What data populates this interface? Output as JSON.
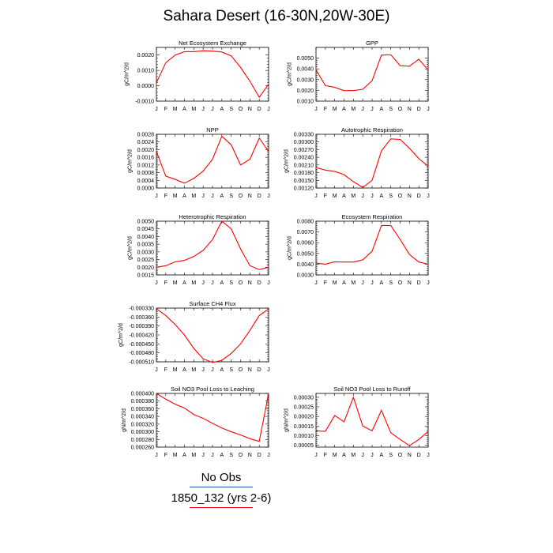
{
  "title": "Sahara Desert (16-30N,20W-30E)",
  "colors": {
    "model": "#ff0000",
    "obs": "#1f4fb4",
    "axis": "#000000"
  },
  "legend": {
    "obs_label": "No Obs",
    "model_label": "1850_132 (yrs 2-6)"
  },
  "chart_data": [
    {
      "type": "line",
      "title": "Net Ecosystem Exchange",
      "ylabel": "gC/m^2/d",
      "categories": [
        "J",
        "F",
        "M",
        "A",
        "M",
        "J",
        "J",
        "A",
        "S",
        "O",
        "N",
        "D",
        "J"
      ],
      "ylim": [
        -0.001,
        0.0025
      ],
      "yticks": [
        -0.001,
        0.0,
        0.001,
        0.002
      ],
      "ytick_labels": [
        "-0.0010",
        "0.0000",
        "0.0010",
        "0.0020"
      ],
      "series": [
        {
          "values": [
            0.0002,
            0.0015,
            0.002,
            0.00222,
            0.00222,
            0.00228,
            0.00226,
            0.0022,
            0.00195,
            0.0012,
            0.0003,
            -0.00075,
            0.0001
          ]
        }
      ]
    },
    {
      "type": "line",
      "title": "GPP",
      "ylabel": "gC/m^2/d",
      "categories": [
        "J",
        "F",
        "M",
        "A",
        "M",
        "J",
        "J",
        "A",
        "S",
        "O",
        "N",
        "D",
        "J"
      ],
      "ylim": [
        0.001,
        0.006
      ],
      "yticks": [
        0.001,
        0.002,
        0.003,
        0.004,
        0.005
      ],
      "ytick_labels": [
        "0.0010",
        "0.0020",
        "0.0030",
        "0.0040",
        "0.0050"
      ],
      "series": [
        {
          "values": [
            0.0039,
            0.00245,
            0.00228,
            0.00198,
            0.00198,
            0.0021,
            0.0029,
            0.00528,
            0.00532,
            0.0043,
            0.00425,
            0.0049,
            0.0039
          ]
        }
      ]
    },
    {
      "type": "line",
      "title": "NPP",
      "ylabel": "gC/m^2/d",
      "categories": [
        "J",
        "F",
        "M",
        "A",
        "M",
        "J",
        "J",
        "A",
        "S",
        "O",
        "N",
        "D",
        "J"
      ],
      "ylim": [
        0.0,
        0.0028
      ],
      "yticks": [
        0.0,
        0.0004,
        0.0008,
        0.0012,
        0.0016,
        0.002,
        0.0024,
        0.0028
      ],
      "ytick_labels": [
        "0.0000",
        "0.0004",
        "0.0008",
        "0.0012",
        "0.0016",
        "0.0020",
        "0.0024",
        "0.0028"
      ],
      "series": [
        {
          "values": [
            0.0019,
            0.00062,
            0.00045,
            0.00025,
            0.0005,
            0.00088,
            0.0015,
            0.0027,
            0.00225,
            0.0012,
            0.0015,
            0.0026,
            0.0019
          ]
        }
      ]
    },
    {
      "type": "line",
      "title": "Autotrophic Respiration",
      "ylabel": "gC/m^2/d",
      "categories": [
        "J",
        "F",
        "M",
        "A",
        "M",
        "J",
        "J",
        "A",
        "S",
        "O",
        "N",
        "D",
        "J"
      ],
      "ylim": [
        0.0012,
        0.0033
      ],
      "yticks": [
        0.0012,
        0.0015,
        0.0018,
        0.0021,
        0.0024,
        0.0027,
        0.003,
        0.0033
      ],
      "ytick_labels": [
        "0.00120",
        "0.00150",
        "0.00180",
        "0.00210",
        "0.00240",
        "0.00270",
        "0.00300",
        "0.00330"
      ],
      "series": [
        {
          "values": [
            0.002,
            0.0019,
            0.00185,
            0.00172,
            0.00145,
            0.00122,
            0.0015,
            0.00265,
            0.00312,
            0.0031,
            0.00275,
            0.00235,
            0.00205
          ]
        }
      ]
    },
    {
      "type": "line",
      "title": "Heterotrophic Respiration",
      "ylabel": "gC/m^2/d",
      "categories": [
        "J",
        "F",
        "M",
        "A",
        "M",
        "J",
        "J",
        "A",
        "S",
        "O",
        "N",
        "D",
        "J"
      ],
      "ylim": [
        0.0015,
        0.005
      ],
      "yticks": [
        0.0015,
        0.002,
        0.0025,
        0.003,
        0.0035,
        0.004,
        0.0045,
        0.005
      ],
      "ytick_labels": [
        "0.0015",
        "0.0020",
        "0.0025",
        "0.0030",
        "0.0035",
        "0.0040",
        "0.0045",
        "0.0050"
      ],
      "series": [
        {
          "values": [
            0.002,
            0.0021,
            0.00235,
            0.00245,
            0.0027,
            0.0031,
            0.0038,
            0.005,
            0.0045,
            0.0032,
            0.0021,
            0.00185,
            0.002
          ]
        }
      ]
    },
    {
      "type": "line",
      "title": "Ecosystem Respiration",
      "ylabel": "gC/m^2/d",
      "categories": [
        "J",
        "F",
        "M",
        "A",
        "M",
        "J",
        "J",
        "A",
        "S",
        "O",
        "N",
        "D",
        "J"
      ],
      "ylim": [
        0.003,
        0.008
      ],
      "yticks": [
        0.003,
        0.004,
        0.005,
        0.006,
        0.007,
        0.008
      ],
      "ytick_labels": [
        "0.0030",
        "0.0040",
        "0.0050",
        "0.0060",
        "0.0070",
        "0.0080"
      ],
      "series": [
        {
          "values": [
            0.0041,
            0.004,
            0.00422,
            0.0042,
            0.0042,
            0.0044,
            0.0052,
            0.0076,
            0.0076,
            0.0063,
            0.0049,
            0.0042,
            0.004
          ]
        }
      ]
    },
    {
      "type": "line",
      "title": "Surface CH4 Flux",
      "ylabel": "gC/m^2/d",
      "categories": [
        "J",
        "F",
        "M",
        "A",
        "M",
        "J",
        "J",
        "A",
        "S",
        "O",
        "N",
        "D",
        "J"
      ],
      "ylim": [
        -0.00051,
        -0.00033
      ],
      "yticks": [
        -0.00051,
        -0.00048,
        -0.00045,
        -0.00042,
        -0.00039,
        -0.00036,
        -0.00033
      ],
      "ytick_labels": [
        "-0.000510",
        "-0.000480",
        "-0.000450",
        "-0.000420",
        "-0.000390",
        "-0.000360",
        "-0.000330"
      ],
      "series": [
        {
          "values": [
            -0.000332,
            -0.000355,
            -0.000385,
            -0.00042,
            -0.000465,
            -0.0005,
            -0.000512,
            -0.000505,
            -0.000482,
            -0.00045,
            -0.000405,
            -0.000355,
            -0.000333
          ]
        }
      ]
    },
    {
      "type": "line",
      "title": "Soil NO3 Pool Loss to Leaching",
      "ylabel": "gN/m^2/d",
      "categories": [
        "J",
        "F",
        "M",
        "A",
        "M",
        "J",
        "J",
        "A",
        "S",
        "O",
        "N",
        "D",
        "J"
      ],
      "ylim": [
        0.00026,
        0.0004
      ],
      "yticks": [
        0.00026,
        0.00028,
        0.0003,
        0.00032,
        0.00034,
        0.00036,
        0.00038,
        0.0004
      ],
      "ytick_labels": [
        "0.000260",
        "0.000280",
        "0.000300",
        "0.000320",
        "0.000340",
        "0.000360",
        "0.000380",
        "0.000400"
      ],
      "series": [
        {
          "values": [
            0.0004,
            0.000385,
            0.000372,
            0.000362,
            0.000345,
            0.000335,
            0.000322,
            0.00031,
            0.0003,
            0.000292,
            0.000282,
            0.000275,
            0.0004
          ]
        }
      ]
    },
    {
      "type": "line",
      "title": "Soil NO3 Pool Loss to Runoff",
      "ylabel": "gN/m^2/d",
      "categories": [
        "J",
        "F",
        "M",
        "A",
        "M",
        "J",
        "J",
        "A",
        "S",
        "O",
        "N",
        "D",
        "J"
      ],
      "ylim": [
        4e-05,
        0.00032
      ],
      "yticks": [
        5e-05,
        0.0001,
        0.00015,
        0.0002,
        0.00025,
        0.0003
      ],
      "ytick_labels": [
        "0.00005",
        "0.00010",
        "0.00015",
        "0.00020",
        "0.00025",
        "0.00030"
      ],
      "series": [
        {
          "values": [
            0.000125,
            0.000122,
            0.000205,
            0.000172,
            0.0003,
            0.00015,
            0.000125,
            0.000232,
            0.000115,
            8e-05,
            4.8e-05,
            8e-05,
            0.000122
          ]
        }
      ]
    }
  ]
}
